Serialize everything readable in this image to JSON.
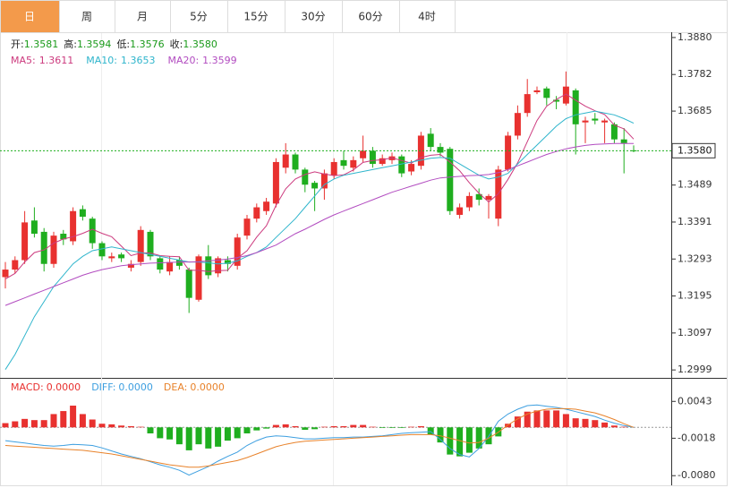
{
  "tabs": [
    "日",
    "周",
    "月",
    "5分",
    "15分",
    "30分",
    "60分",
    "4时"
  ],
  "active_tab": 0,
  "chart_data": [
    {
      "type": "candlestick",
      "header": [
        {
          "label": "开:",
          "value": "1.3581"
        },
        {
          "label": "高:",
          "value": "1.3594"
        },
        {
          "label": "低:",
          "value": "1.3576"
        },
        {
          "label": "收:",
          "value": "1.3580"
        }
      ],
      "up_color": "#e8312f",
      "down_color": "#1fae1f",
      "open": [
        1.3245,
        1.3265,
        1.329,
        1.3395,
        1.3365,
        1.328,
        1.336,
        1.334,
        1.3425,
        1.34,
        1.3335,
        1.3295,
        1.3305,
        1.327,
        1.3285,
        1.3365,
        1.3295,
        1.326,
        1.329,
        1.3265,
        1.3185,
        1.33,
        1.3255,
        1.329,
        1.3275,
        1.3355,
        1.34,
        1.342,
        1.344,
        1.3535,
        1.357,
        1.353,
        1.3495,
        1.348,
        1.3515,
        1.3555,
        1.3535,
        1.356,
        1.358,
        1.3545,
        1.3555,
        1.3565,
        1.3525,
        1.354,
        1.3625,
        1.359,
        1.3585,
        1.341,
        1.343,
        1.3465,
        1.345,
        1.34,
        1.353,
        1.362,
        1.368,
        1.3735,
        1.3745,
        1.3715,
        1.3705,
        1.374,
        1.3655,
        1.3665,
        1.3655,
        1.365,
        1.361,
        1.3581
      ],
      "high": [
        1.3285,
        1.33,
        1.342,
        1.343,
        1.3375,
        1.3365,
        1.337,
        1.343,
        1.3435,
        1.3405,
        1.334,
        1.331,
        1.331,
        1.329,
        1.338,
        1.337,
        1.33,
        1.33,
        1.33,
        1.327,
        1.3305,
        1.333,
        1.33,
        1.33,
        1.336,
        1.341,
        1.344,
        1.3455,
        1.356,
        1.36,
        1.3575,
        1.3535,
        1.35,
        1.353,
        1.356,
        1.358,
        1.3565,
        1.362,
        1.359,
        1.357,
        1.3575,
        1.357,
        1.3555,
        1.363,
        1.364,
        1.36,
        1.359,
        1.344,
        1.347,
        1.348,
        1.3465,
        1.354,
        1.363,
        1.37,
        1.377,
        1.375,
        1.375,
        1.3725,
        1.379,
        1.3745,
        1.367,
        1.368,
        1.3665,
        1.3655,
        1.364,
        1.3594
      ],
      "low": [
        1.3215,
        1.3255,
        1.328,
        1.335,
        1.326,
        1.327,
        1.333,
        1.333,
        1.3395,
        1.332,
        1.329,
        1.3285,
        1.3285,
        1.326,
        1.3275,
        1.329,
        1.3255,
        1.325,
        1.3265,
        1.315,
        1.318,
        1.324,
        1.3245,
        1.326,
        1.3265,
        1.3345,
        1.339,
        1.341,
        1.343,
        1.352,
        1.352,
        1.347,
        1.342,
        1.345,
        1.3505,
        1.353,
        1.3525,
        1.355,
        1.3535,
        1.354,
        1.3545,
        1.351,
        1.3515,
        1.353,
        1.358,
        1.3565,
        1.341,
        1.34,
        1.342,
        1.3435,
        1.34,
        1.338,
        1.3525,
        1.361,
        1.367,
        1.373,
        1.37,
        1.369,
        1.37,
        1.357,
        1.36,
        1.365,
        1.36,
        1.36,
        1.352,
        1.3576
      ],
      "close": [
        1.3265,
        1.329,
        1.339,
        1.336,
        1.328,
        1.3355,
        1.3345,
        1.342,
        1.3405,
        1.3335,
        1.33,
        1.33,
        1.3295,
        1.328,
        1.337,
        1.33,
        1.3265,
        1.3285,
        1.3275,
        1.319,
        1.33,
        1.325,
        1.3295,
        1.328,
        1.335,
        1.34,
        1.343,
        1.3445,
        1.355,
        1.357,
        1.353,
        1.349,
        1.348,
        1.352,
        1.355,
        1.354,
        1.3555,
        1.358,
        1.3545,
        1.356,
        1.3565,
        1.352,
        1.3545,
        1.362,
        1.359,
        1.3575,
        1.342,
        1.343,
        1.346,
        1.345,
        1.346,
        1.353,
        1.362,
        1.368,
        1.373,
        1.374,
        1.372,
        1.371,
        1.375,
        1.365,
        1.366,
        1.366,
        1.366,
        1.361,
        1.36,
        1.358
      ],
      "series": [
        {
          "name": "MA5:",
          "last": "1.3611",
          "color": "#cc3a7e",
          "values": [
            1.324,
            1.3255,
            1.3285,
            1.331,
            1.3317,
            1.3335,
            1.3346,
            1.3352,
            1.3361,
            1.3372,
            1.3361,
            1.3352,
            1.3327,
            1.3302,
            1.3309,
            1.3309,
            1.3302,
            1.33,
            1.3299,
            1.3263,
            1.3263,
            1.326,
            1.3262,
            1.3263,
            1.3295,
            1.3315,
            1.3351,
            1.3381,
            1.3435,
            1.3479,
            1.3505,
            1.3517,
            1.3524,
            1.3518,
            1.3514,
            1.3516,
            1.3529,
            1.3549,
            1.3554,
            1.3556,
            1.3561,
            1.3554,
            1.3547,
            1.3562,
            1.3568,
            1.357,
            1.355,
            1.3527,
            1.3495,
            1.3467,
            1.3444,
            1.3466,
            1.3504,
            1.3548,
            1.3604,
            1.366,
            1.3698,
            1.3716,
            1.373,
            1.3714,
            1.3698,
            1.3686,
            1.3676,
            1.3648,
            1.3638,
            1.3611
          ]
        },
        {
          "name": "MA10:",
          "last": "1.3653",
          "color": "#2fb5cc",
          "values": [
            1.3,
            1.304,
            1.309,
            1.314,
            1.318,
            1.322,
            1.325,
            1.328,
            1.33,
            1.3315,
            1.332,
            1.3325,
            1.332,
            1.3315,
            1.331,
            1.3305,
            1.33,
            1.3295,
            1.329,
            1.3285,
            1.3285,
            1.3283,
            1.328,
            1.3282,
            1.3288,
            1.33,
            1.331,
            1.3325,
            1.335,
            1.3375,
            1.34,
            1.343,
            1.346,
            1.349,
            1.3505,
            1.3515,
            1.352,
            1.3525,
            1.353,
            1.3535,
            1.354,
            1.3545,
            1.355,
            1.3555,
            1.356,
            1.3562,
            1.356,
            1.3545,
            1.353,
            1.3515,
            1.3505,
            1.351,
            1.352,
            1.3545,
            1.357,
            1.3595,
            1.362,
            1.3645,
            1.3665,
            1.3675,
            1.368,
            1.3685,
            1.368,
            1.3675,
            1.3665,
            1.3653
          ]
        },
        {
          "name": "MA20:",
          "last": "1.3599",
          "color": "#b24cc0",
          "values": [
            1.317,
            1.318,
            1.319,
            1.32,
            1.321,
            1.322,
            1.323,
            1.324,
            1.325,
            1.3258,
            1.3265,
            1.327,
            1.3275,
            1.3278,
            1.328,
            1.3282,
            1.3283,
            1.3284,
            1.3285,
            1.3285,
            1.3286,
            1.3288,
            1.329,
            1.3293,
            1.3297,
            1.3302,
            1.331,
            1.332,
            1.333,
            1.3345,
            1.336,
            1.3372,
            1.3385,
            1.3398,
            1.341,
            1.342,
            1.343,
            1.344,
            1.345,
            1.346,
            1.347,
            1.3478,
            1.3486,
            1.3494,
            1.3502,
            1.3508,
            1.351,
            1.3512,
            1.3514,
            1.3515,
            1.3517,
            1.3522,
            1.353,
            1.354,
            1.355,
            1.356,
            1.357,
            1.3578,
            1.3585,
            1.359,
            1.3594,
            1.3597,
            1.3598,
            1.3599,
            1.3599,
            1.3599
          ]
        }
      ],
      "last_price": {
        "value": 1.358,
        "label": "1.3580"
      },
      "ylim": [
        1.2978,
        1.3894
      ],
      "yticks": [
        {
          "value": 1.388,
          "label": "1.3880"
        },
        1.3782,
        1.3685,
        1.3489,
        1.3391,
        1.3293,
        1.3195,
        1.3097,
        1.2999
      ]
    },
    {
      "type": "macd",
      "histogram": {
        "name": "MACD:",
        "last": "0.0000",
        "up_color": "#e8312f",
        "down_color": "#1fae1f",
        "values": [
          0.0007,
          0.001,
          0.0014,
          0.0012,
          0.0012,
          0.0022,
          0.0027,
          0.0036,
          0.0022,
          0.0013,
          0.0006,
          0.0005,
          0.0003,
          0.0002,
          0.0001,
          -0.001,
          -0.0018,
          -0.002,
          -0.0028,
          -0.0038,
          -0.0028,
          -0.0035,
          -0.0032,
          -0.0022,
          -0.0018,
          -0.001,
          -0.0005,
          -0.0002,
          0.0004,
          0.0005,
          0.0002,
          -0.0004,
          -0.0003,
          0.0001,
          0.0002,
          0.0002,
          0.0004,
          0.0004,
          0.0001,
          -0.0001,
          -0.0001,
          -0.0001,
          0.0001,
          0.0002,
          -0.0012,
          -0.0025,
          -0.0045,
          -0.0048,
          -0.0042,
          -0.0035,
          -0.0028,
          -0.0015,
          0.0006,
          0.0018,
          0.0026,
          0.0028,
          0.0028,
          0.0028,
          0.0022,
          0.0015,
          0.0014,
          0.0012,
          0.0008,
          0.0003,
          0.0001,
          0.0
        ]
      },
      "series": [
        {
          "name": "DIFF:",
          "last": "0.0000",
          "color": "#3d9fe0",
          "values": [
            -0.0022,
            -0.0024,
            -0.0026,
            -0.0028,
            -0.003,
            -0.0031,
            -0.003,
            -0.0028,
            -0.0029,
            -0.003,
            -0.0034,
            -0.0039,
            -0.0044,
            -0.0048,
            -0.0052,
            -0.0057,
            -0.0062,
            -0.0066,
            -0.0071,
            -0.0079,
            -0.0072,
            -0.0065,
            -0.0056,
            -0.0048,
            -0.0041,
            -0.003,
            -0.0022,
            -0.0016,
            -0.0014,
            -0.0015,
            -0.0017,
            -0.0019,
            -0.0019,
            -0.0018,
            -0.0017,
            -0.0017,
            -0.0016,
            -0.0016,
            -0.0015,
            -0.0014,
            -0.0012,
            -0.001,
            -0.0009,
            -0.0008,
            -0.0007,
            -0.002,
            -0.0035,
            -0.0045,
            -0.0049,
            -0.0035,
            -0.0015,
            0.001,
            0.0022,
            0.003,
            0.0036,
            0.0037,
            0.0035,
            0.0033,
            0.003,
            0.0026,
            0.0022,
            0.0018,
            0.0012,
            0.0007,
            0.0003,
            0.0
          ]
        },
        {
          "name": "DEA:",
          "last": "0.0000",
          "color": "#e8822a",
          "values": [
            -0.003,
            -0.0031,
            -0.0032,
            -0.0033,
            -0.0034,
            -0.0035,
            -0.0036,
            -0.0037,
            -0.0038,
            -0.004,
            -0.0042,
            -0.0044,
            -0.0047,
            -0.005,
            -0.0053,
            -0.0056,
            -0.0059,
            -0.0062,
            -0.0064,
            -0.0066,
            -0.0066,
            -0.0064,
            -0.0061,
            -0.0058,
            -0.0055,
            -0.005,
            -0.0044,
            -0.0038,
            -0.0032,
            -0.0028,
            -0.0025,
            -0.0023,
            -0.0022,
            -0.0021,
            -0.002,
            -0.0019,
            -0.0018,
            -0.0017,
            -0.0016,
            -0.0015,
            -0.0014,
            -0.0013,
            -0.0012,
            -0.0012,
            -0.0012,
            -0.0014,
            -0.0018,
            -0.0022,
            -0.0026,
            -0.0025,
            -0.0018,
            -0.0008,
            0.0004,
            0.0014,
            0.0022,
            0.0027,
            0.003,
            0.0031,
            0.0031,
            0.003,
            0.0027,
            0.0024,
            0.0019,
            0.0013,
            0.0006,
            0.0
          ]
        }
      ],
      "ylim": [
        -0.0093,
        0.0079
      ],
      "yticks": [
        0.0043,
        -0.0018,
        {
          "value": -0.008,
          "label": "-0.0080"
        }
      ]
    }
  ]
}
